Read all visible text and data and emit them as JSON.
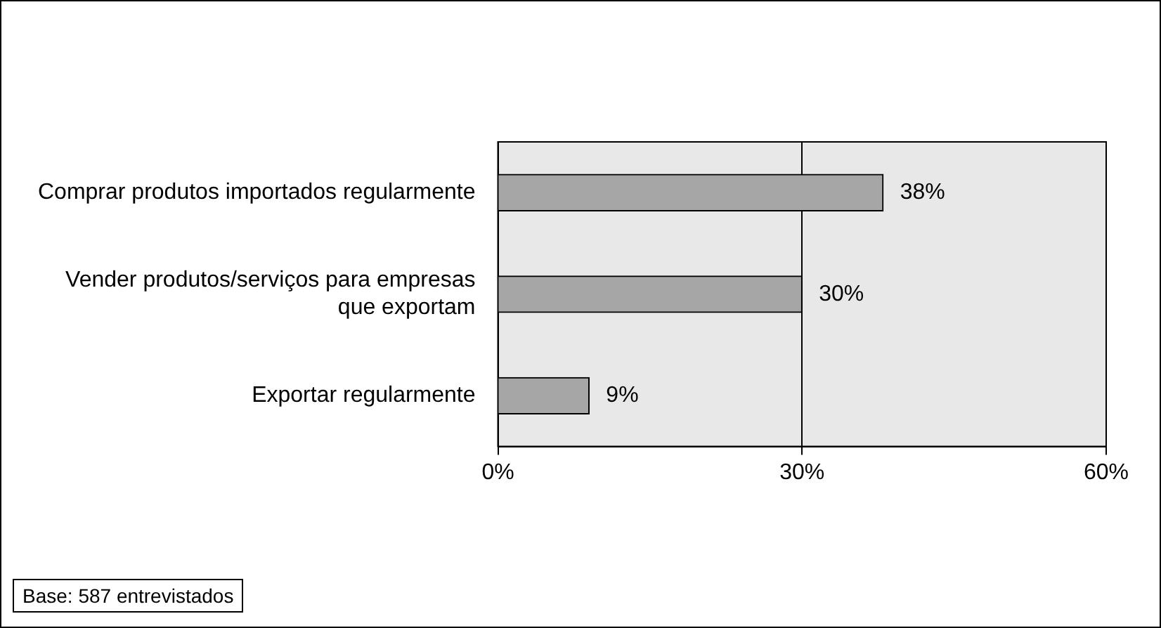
{
  "chart_data": {
    "type": "bar",
    "orientation": "horizontal",
    "categories": [
      "Comprar produtos importados regularmente",
      "Vender produtos/serviços para empresas que exportam",
      "Exportar regularmente"
    ],
    "values": [
      38,
      30,
      9
    ],
    "color": "#a6a6a6",
    "value_labels": [
      "38%",
      "30%",
      "9%"
    ],
    "xlim": [
      0,
      60
    ],
    "xticks": [
      {
        "value": 0,
        "label": "0%"
      },
      {
        "value": 30,
        "label": "30%"
      },
      {
        "value": 60,
        "label": "60%"
      }
    ],
    "grid": "x",
    "legend": false,
    "annotations": [
      "Base: 587 entrevistados"
    ]
  }
}
